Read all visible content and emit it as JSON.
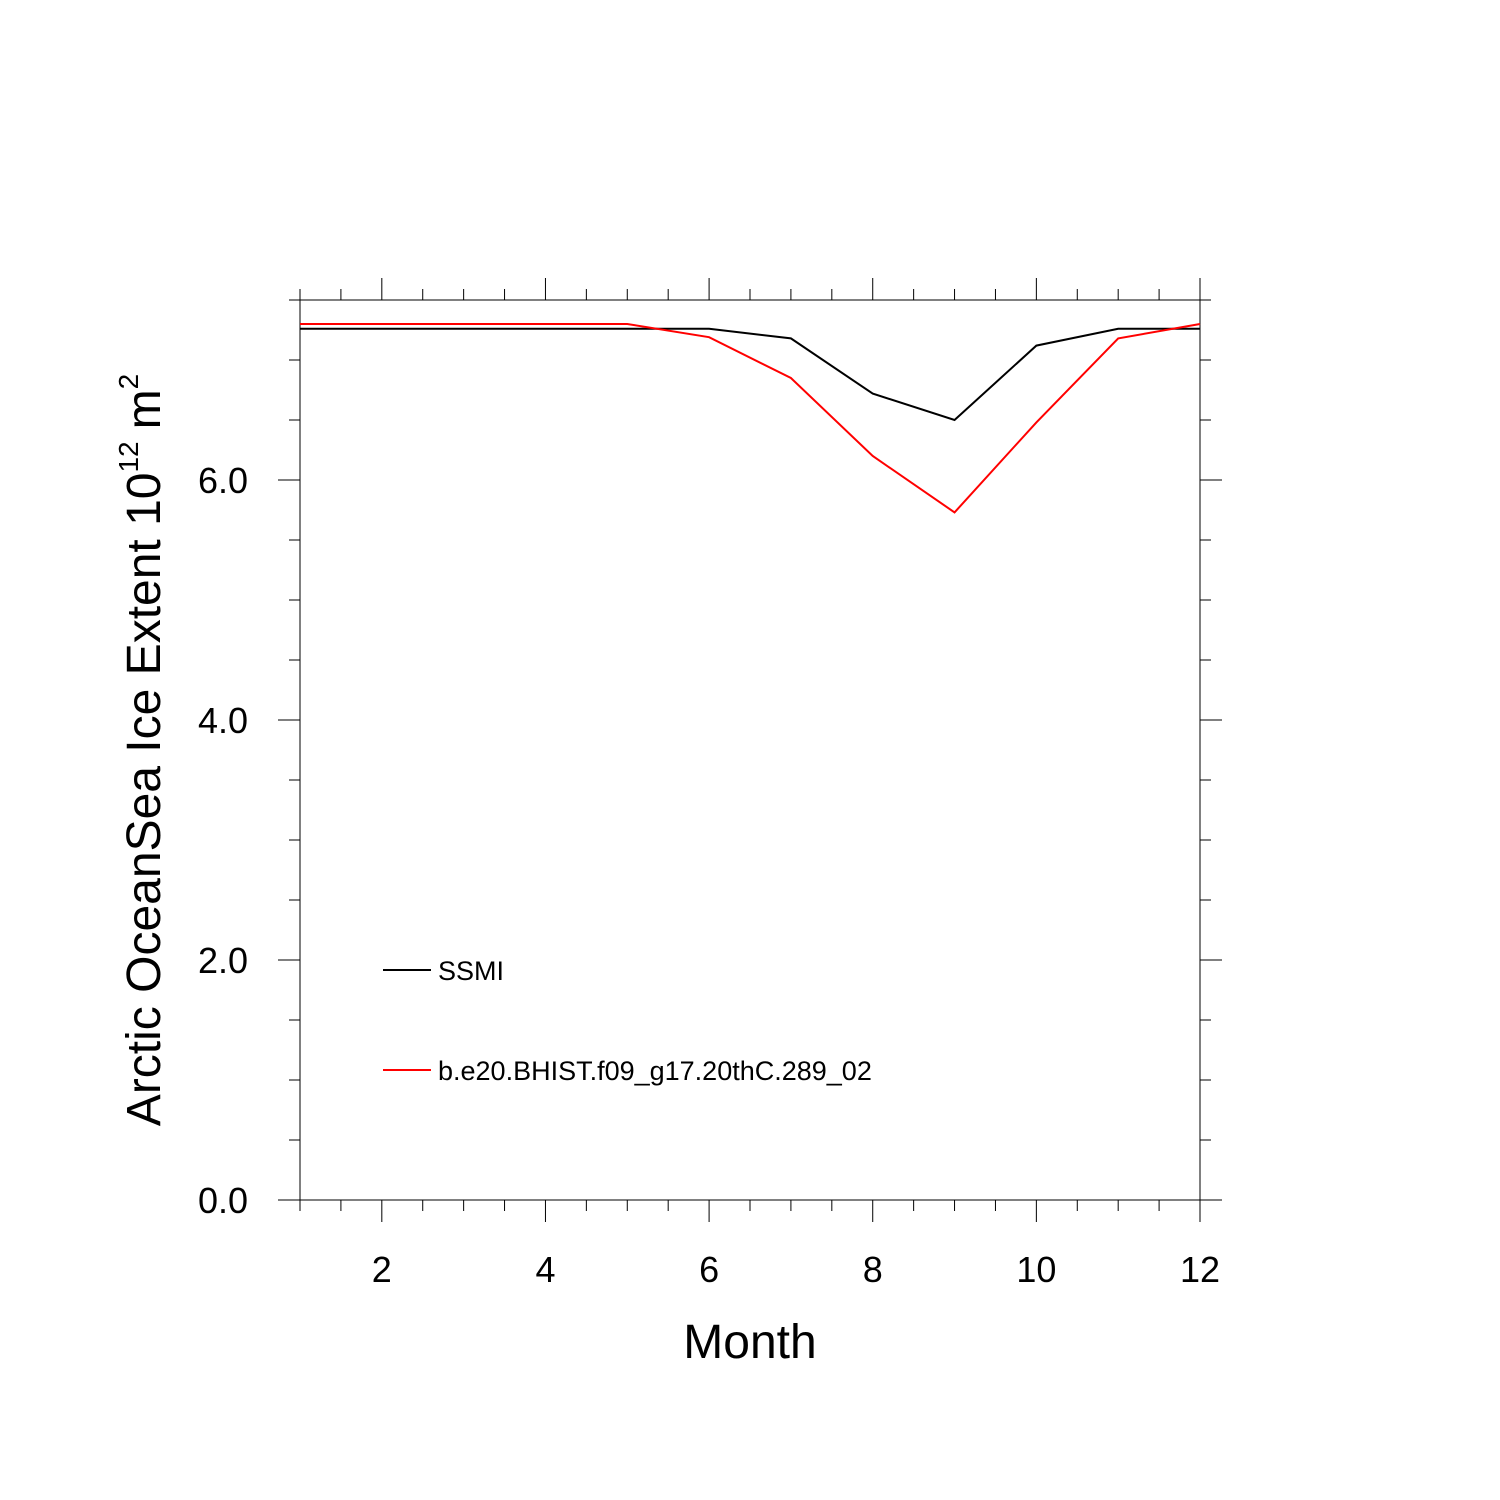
{
  "chart_data": {
    "type": "line",
    "xlabel": "Month",
    "ylabel": {
      "main": "Arctic OceanSea Ice Extent 10",
      "exponent": "12",
      "unit": "m",
      "unit_exponent": "2"
    },
    "xlim": [
      1,
      12
    ],
    "ylim": [
      0,
      7.5
    ],
    "x_ticks": [
      2,
      4,
      6,
      8,
      10,
      12
    ],
    "x_tick_labels": [
      "2",
      "4",
      "6",
      "8",
      "10",
      "12"
    ],
    "y_ticks": [
      0,
      2,
      4,
      6
    ],
    "y_tick_labels": [
      "0.0",
      "2.0",
      "4.0",
      "6.0"
    ],
    "x_minor_step": 0.5,
    "y_minor_step": 0.5,
    "grid": false,
    "legend_position": "bottom-left",
    "x": [
      1,
      2,
      3,
      4,
      5,
      6,
      7,
      8,
      9,
      10,
      11,
      12
    ],
    "series": [
      {
        "name": "SSMI",
        "color": "#000000",
        "values": [
          7.26,
          7.26,
          7.26,
          7.26,
          7.26,
          7.26,
          7.18,
          6.72,
          6.5,
          7.12,
          7.26,
          7.26
        ]
      },
      {
        "name": "b.e20.BHIST.f09_g17.20thC.289_02",
        "color": "#ff0000",
        "values": [
          7.3,
          7.3,
          7.3,
          7.3,
          7.3,
          7.19,
          6.85,
          6.2,
          5.73,
          6.48,
          7.18,
          7.3
        ]
      }
    ]
  }
}
